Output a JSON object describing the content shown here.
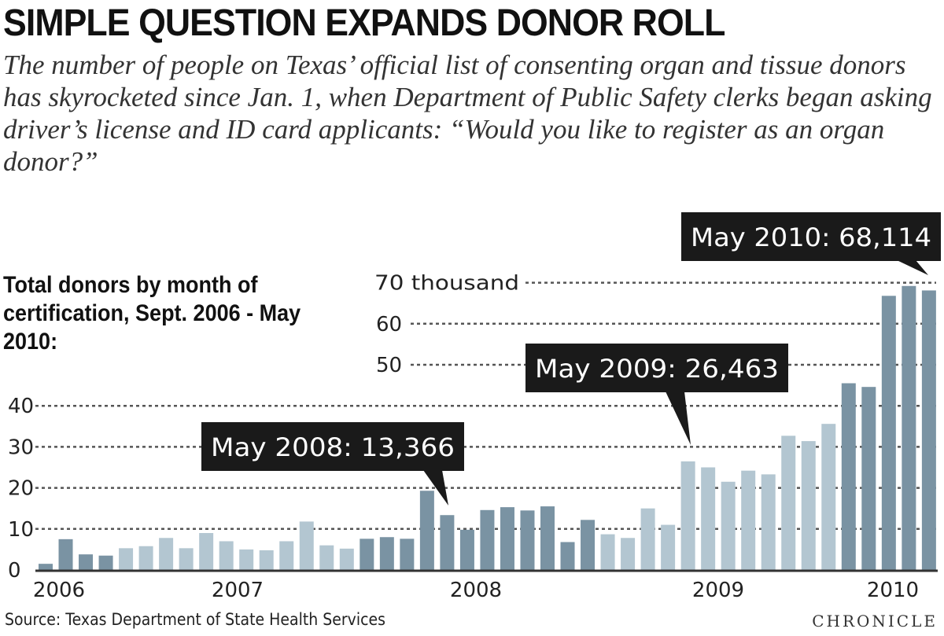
{
  "title": "SIMPLE QUESTION EXPANDS DONOR ROLL",
  "subtitle": "The number of people on Texas’ official list of consenting organ and tissue donors has skyrocketed since Jan. 1, when Department of Public Safety clerks began asking driver’s license and ID card applicants: “Would you like to register as an organ donor?”",
  "source": "Source: Texas Department of State Health Services",
  "logo": "CHRONICLE",
  "chart_data": {
    "type": "bar",
    "title": "Total donors by month of certification, Sept. 2006 - May 2010:",
    "ylabel": "thousand",
    "ylim": [
      0,
      70
    ],
    "yticks": [
      0,
      10,
      20,
      30,
      40,
      50,
      60,
      70
    ],
    "ytick_labels": [
      "0",
      "10",
      "20",
      "30",
      "40",
      "50",
      "60",
      "70 thousand"
    ],
    "grid": true,
    "year_labels": [
      "2006",
      "2007",
      "2008",
      "2009",
      "2010"
    ],
    "categories": [
      "Sep 2006",
      "Oct 2006",
      "Nov 2006",
      "Dec 2006",
      "Jan 2007",
      "Feb 2007",
      "Mar 2007",
      "Apr 2007",
      "May 2007",
      "Jun 2007",
      "Jul 2007",
      "Aug 2007",
      "Sep 2007",
      "Oct 2007",
      "Nov 2007",
      "Dec 2007",
      "Jan 2008",
      "Feb 2008",
      "Mar 2008",
      "Apr 2008",
      "May 2008",
      "Jun 2008",
      "Jul 2008",
      "Aug 2008",
      "Sep 2008",
      "Oct 2008",
      "Nov 2008",
      "Dec 2008",
      "Jan 2009",
      "Feb 2009",
      "Mar 2009",
      "Apr 2009",
      "May 2009",
      "Jun 2009",
      "Jul 2009",
      "Aug 2009",
      "Sep 2009",
      "Oct 2009",
      "Nov 2009",
      "Dec 2009",
      "Jan 2010",
      "Feb 2010",
      "Mar 2010",
      "Apr 2010",
      "May 2010"
    ],
    "values": [
      1.5,
      7.5,
      3.8,
      3.5,
      5.3,
      5.8,
      7.8,
      5.3,
      9.0,
      7.0,
      5.0,
      4.8,
      7.0,
      11.8,
      6.0,
      5.2,
      7.6,
      8.0,
      7.6,
      19.3,
      13.366,
      9.8,
      14.6,
      15.3,
      14.5,
      15.5,
      6.8,
      12.2,
      8.7,
      7.8,
      15.0,
      11.0,
      26.463,
      25.0,
      21.5,
      24.2,
      23.3,
      32.7,
      31.4,
      35.6,
      45.5,
      44.6,
      66.8,
      69.2,
      68.114
    ],
    "colors": {
      "dark": "#7a93a3",
      "light": "#b3c6d1"
    },
    "annotations": [
      {
        "text": "May 2008: 13,366",
        "category": "May 2008"
      },
      {
        "text": "May 2009: 26,463",
        "category": "May 2009"
      },
      {
        "text": "May 2010: 68,114",
        "category": "May 2010"
      }
    ]
  }
}
